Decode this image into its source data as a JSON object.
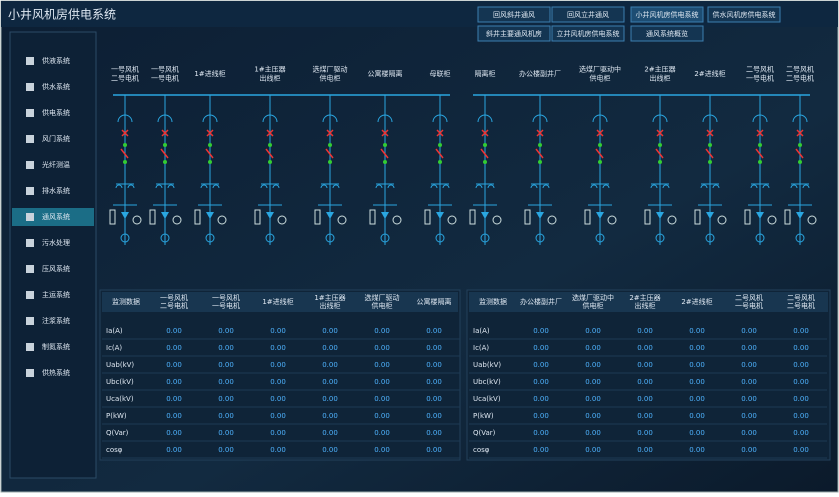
{
  "header": {
    "title": "小井风机房供电系统",
    "tabs": [
      [
        "回风斜井通风",
        "回风立井通风",
        "小井风机房供电系统",
        "供水风机房供电系统"
      ],
      [
        "斜井主要通风机房",
        "立井风机房供电系统",
        "通风系统概览"
      ]
    ]
  },
  "sidebar": {
    "items": [
      "供液系统",
      "供水系统",
      "供电系统",
      "风门系统",
      "光纤测温",
      "排水系统",
      "通风系统",
      "污水处理",
      "压风系统",
      "主运系统",
      "注浆系统",
      "制氮系统",
      "供热系统"
    ]
  },
  "feeders": {
    "left": [
      [
        "一号风机",
        "二号电机"
      ],
      [
        "一号风机",
        "一号电机"
      ],
      [
        "1#进线柜"
      ],
      [
        "1#主压器",
        "出线柜"
      ],
      [
        "选煤厂驱动",
        "供电柜"
      ],
      [
        "公寓楼隔离"
      ],
      [
        "母联柜"
      ]
    ],
    "right": [
      [
        "隔离柜"
      ],
      [
        "办公楼副井厂"
      ],
      [
        "选煤厂驱动中",
        "供电柜"
      ],
      [
        "2#主压器",
        "出线柜"
      ],
      [
        "2#进线柜"
      ],
      [
        "二号风机",
        "一号电机"
      ],
      [
        "二号风机",
        "二号电机"
      ]
    ]
  },
  "tables": [
    {
      "headers": [
        "监测数据",
        [
          "一号风机",
          "二号电机"
        ],
        [
          "一号风机",
          "一号电机"
        ],
        [
          "1#进线柜"
        ],
        [
          "1#主压器",
          "出线柜"
        ],
        [
          "选煤厂驱动",
          "供电柜"
        ],
        [
          "公寓楼隔离"
        ]
      ],
      "rows": [
        [
          "Ia(A)",
          "0.00",
          "0.00",
          "0.00",
          "0.00",
          "0.00",
          "0.00"
        ],
        [
          "Ic(A)",
          "0.00",
          "0.00",
          "0.00",
          "0.00",
          "0.00",
          "0.00"
        ],
        [
          "Uab(kV)",
          "0.00",
          "0.00",
          "0.00",
          "0.00",
          "0.00",
          "0.00"
        ],
        [
          "Ubc(kV)",
          "0.00",
          "0.00",
          "0.00",
          "0.00",
          "0.00",
          "0.00"
        ],
        [
          "Uca(kV)",
          "0.00",
          "0.00",
          "0.00",
          "0.00",
          "0.00",
          "0.00"
        ],
        [
          "P(kW)",
          "0.00",
          "0.00",
          "0.00",
          "0.00",
          "0.00",
          "0.00"
        ],
        [
          "Q(Var)",
          "0.00",
          "0.00",
          "0.00",
          "0.00",
          "0.00",
          "0.00"
        ],
        [
          "cosφ",
          "0.00",
          "0.00",
          "0.00",
          "0.00",
          "0.00",
          "0.00"
        ]
      ]
    },
    {
      "headers": [
        "监测数据",
        [
          "办公楼副井厂"
        ],
        [
          "选煤厂驱动中",
          "供电柜"
        ],
        [
          "2#主压器",
          "出线柜"
        ],
        [
          "2#进线柜"
        ],
        [
          "二号风机",
          "一号电机"
        ],
        [
          "二号风机",
          "二号电机"
        ]
      ],
      "rows": [
        [
          "Ia(A)",
          "0.00",
          "0.00",
          "0.00",
          "0.00",
          "0.00",
          "0.00"
        ],
        [
          "Ic(A)",
          "0.00",
          "0.00",
          "0.00",
          "0.00",
          "0.00",
          "0.00"
        ],
        [
          "Uab(kV)",
          "0.00",
          "0.00",
          "0.00",
          "0.00",
          "0.00",
          "0.00"
        ],
        [
          "Ubc(kV)",
          "0.00",
          "0.00",
          "0.00",
          "0.00",
          "0.00",
          "0.00"
        ],
        [
          "Uca(kV)",
          "0.00",
          "0.00",
          "0.00",
          "0.00",
          "0.00",
          "0.00"
        ],
        [
          "P(kW)",
          "0.00",
          "0.00",
          "0.00",
          "0.00",
          "0.00",
          "0.00"
        ],
        [
          "Q(Var)",
          "0.00",
          "0.00",
          "0.00",
          "0.00",
          "0.00",
          "0.00"
        ],
        [
          "cosφ",
          "0.00",
          "0.00",
          "0.00",
          "0.00",
          "0.00",
          "0.00"
        ]
      ]
    }
  ]
}
